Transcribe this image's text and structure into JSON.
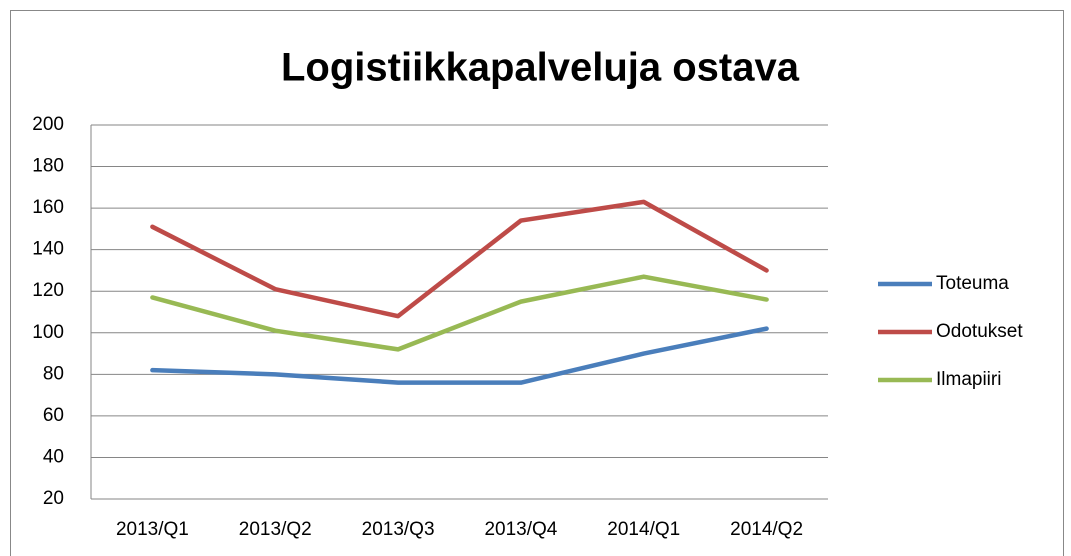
{
  "chart_data": {
    "type": "line",
    "title": "Logistiikkapalveluja ostava",
    "categories": [
      "2013/Q1",
      "2013/Q2",
      "2013/Q3",
      "2013/Q4",
      "2014/Q1",
      "2014/Q2"
    ],
    "series": [
      {
        "name": "Toteuma",
        "color": "#4a7ebb",
        "values": [
          82,
          80,
          76,
          76,
          90,
          102
        ]
      },
      {
        "name": "Odotukset",
        "color": "#be4b48",
        "values": [
          151,
          121,
          108,
          154,
          163,
          130
        ]
      },
      {
        "name": "Ilmapiiri",
        "color": "#98b954",
        "values": [
          117,
          101,
          92,
          115,
          127,
          116
        ]
      }
    ],
    "ylim": [
      20,
      200
    ],
    "yticks": [
      20,
      40,
      60,
      80,
      100,
      120,
      140,
      160,
      180,
      200
    ],
    "grid": true,
    "legend": "right"
  }
}
